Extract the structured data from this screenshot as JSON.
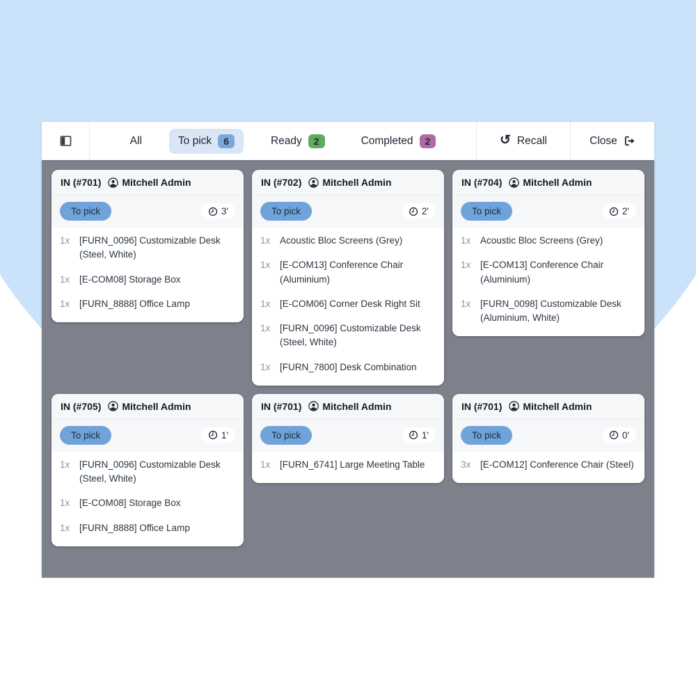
{
  "toolbar": {
    "filters": [
      {
        "label": "All",
        "count": null,
        "active": false,
        "badge_color": null
      },
      {
        "label": "To pick",
        "count": "6",
        "active": true,
        "badge_color": "#79a8d9"
      },
      {
        "label": "Ready",
        "count": "2",
        "active": false,
        "badge_color": "#5faa61"
      },
      {
        "label": "Completed",
        "count": "2",
        "active": false,
        "badge_color": "#b06aa5"
      }
    ],
    "recall_label": "Recall",
    "recall_icon": "↺",
    "close_label": "Close"
  },
  "cards": [
    {
      "name": "IN (#701)",
      "owner": "Mitchell Admin",
      "status": "To pick",
      "time": "3'",
      "items": [
        {
          "qty": "1x",
          "name": "[FURN_0096] Customizable Desk (Steel, White)"
        },
        {
          "qty": "1x",
          "name": "[E-COM08] Storage Box"
        },
        {
          "qty": "1x",
          "name": "[FURN_8888] Office Lamp"
        }
      ]
    },
    {
      "name": "IN (#702)",
      "owner": "Mitchell Admin",
      "status": "To pick",
      "time": "2'",
      "items": [
        {
          "qty": "1x",
          "name": "Acoustic Bloc Screens (Grey)"
        },
        {
          "qty": "1x",
          "name": "[E-COM13] Conference Chair (Aluminium)"
        },
        {
          "qty": "1x",
          "name": "[E-COM06] Corner Desk Right Sit"
        },
        {
          "qty": "1x",
          "name": "[FURN_0096] Customizable Desk (Steel, White)"
        },
        {
          "qty": "1x",
          "name": "[FURN_7800] Desk Combination"
        }
      ]
    },
    {
      "name": "IN (#704)",
      "owner": "Mitchell Admin",
      "status": "To pick",
      "time": "2'",
      "items": [
        {
          "qty": "1x",
          "name": "Acoustic Bloc Screens (Grey)"
        },
        {
          "qty": "1x",
          "name": "[E-COM13] Conference Chair (Aluminium)"
        },
        {
          "qty": "1x",
          "name": "[FURN_0098] Customizable Desk (Aluminium, White)"
        }
      ]
    },
    {
      "name": "IN (#705)",
      "owner": "Mitchell Admin",
      "status": "To pick",
      "time": "1'",
      "items": [
        {
          "qty": "1x",
          "name": "[FURN_0096] Customizable Desk (Steel, White)"
        },
        {
          "qty": "1x",
          "name": "[E-COM08] Storage Box"
        },
        {
          "qty": "1x",
          "name": "[FURN_8888] Office Lamp"
        }
      ]
    },
    {
      "name": "IN (#701)",
      "owner": "Mitchell Admin",
      "status": "To pick",
      "time": "1'",
      "items": [
        {
          "qty": "1x",
          "name": "[FURN_6741] Large Meeting Table"
        }
      ]
    },
    {
      "name": "IN (#701)",
      "owner": "Mitchell Admin",
      "status": "To pick",
      "time": "0'",
      "items": [
        {
          "qty": "3x",
          "name": "[E-COM12] Conference Chair (Steel)"
        }
      ]
    }
  ],
  "colors": {
    "background_blue": "#cbe3fa",
    "panel_gray": "#7d818c",
    "status_pill_blue": "#6fa3d9",
    "filter_active_bg": "#d8e6f5",
    "badge_blue": "#79a8d9",
    "badge_green": "#5faa61",
    "badge_purple": "#b06aa5"
  }
}
